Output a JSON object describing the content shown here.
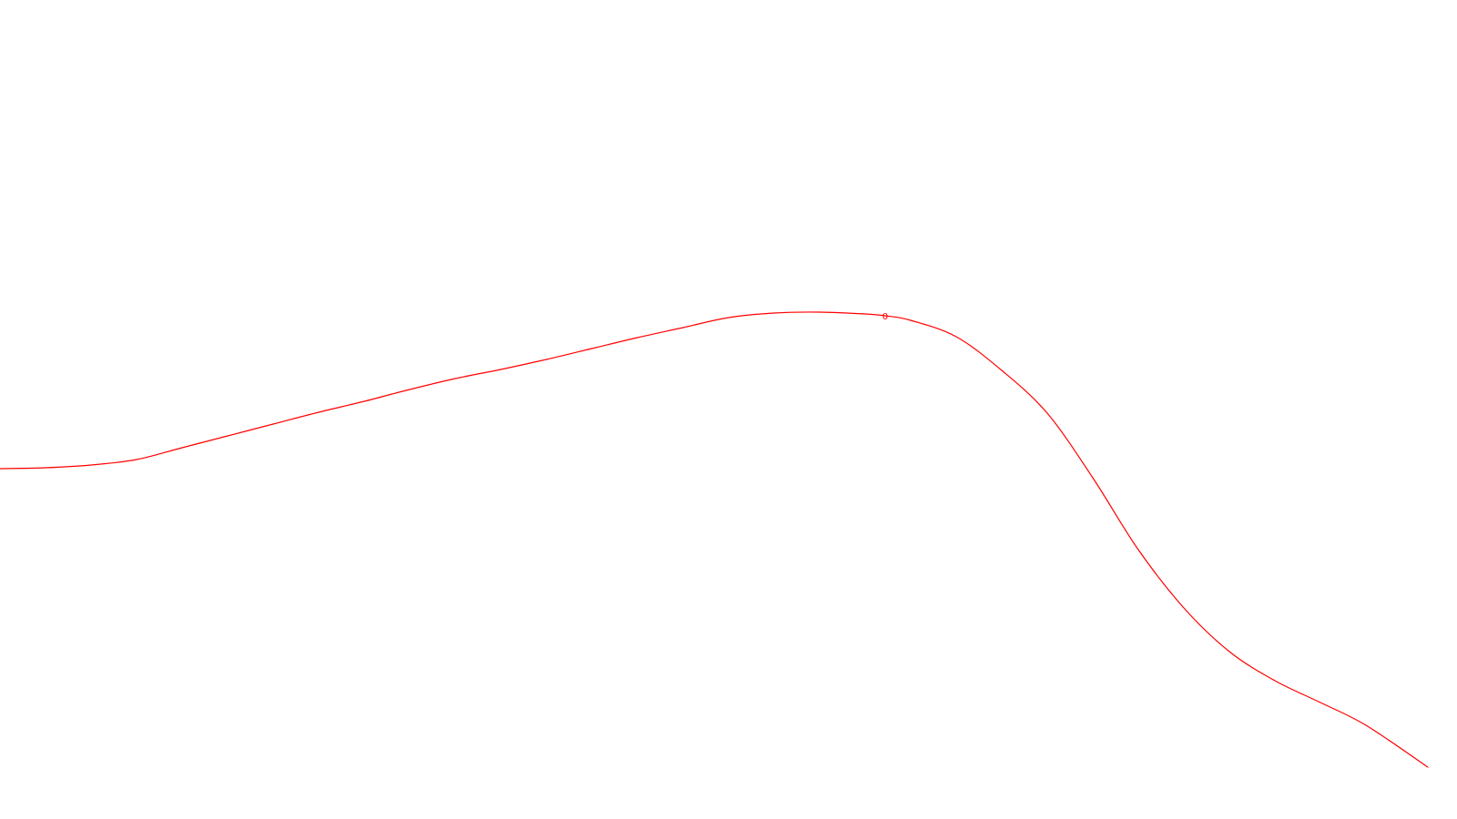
{
  "chart_data": {
    "type": "line",
    "title": "",
    "xlabel": "",
    "ylabel": "",
    "grid": false,
    "legend": "none",
    "series": [
      {
        "color": "#ff0000",
        "point_label": "0",
        "x": [
          0,
          50,
          100,
          150,
          200,
          250,
          300,
          350,
          400,
          450,
          500,
          550,
          600,
          650,
          700,
          750,
          800,
          850,
          900,
          950,
          972,
          1000,
          1050,
          1100,
          1150,
          1200,
          1250,
          1300,
          1350,
          1400,
          1450,
          1500,
          1568
        ],
        "y": [
          515,
          514,
          511,
          505,
          492,
          479,
          466,
          453,
          441,
          428,
          416,
          406,
          395,
          383,
          371,
          360,
          349,
          344,
          343,
          345,
          347,
          352,
          370,
          407,
          454,
          525,
          604,
          668,
          716,
          748,
          772,
          797,
          843
        ]
      }
    ]
  }
}
